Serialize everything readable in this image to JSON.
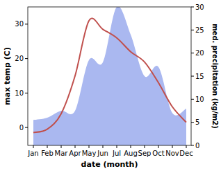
{
  "chart_data": {
    "type": "line",
    "x_label": "date (month)",
    "y_label": "max temp (C)",
    "y2_label": "med. precipitation (kg/m2)",
    "categories": [
      "Jan",
      "Feb",
      "Mar",
      "Apr",
      "May",
      "Jun",
      "Jul",
      "Aug",
      "Sep",
      "Oct",
      "Nov",
      "Dec"
    ],
    "series": [
      {
        "name": "max temp",
        "type": "line",
        "color": "#c0504d",
        "values": [
          -1.5,
          -0.5,
          4,
          15,
          31,
          28.5,
          26,
          22,
          19,
          13,
          6,
          1.5
        ]
      },
      {
        "name": "med. precipitation",
        "type": "area",
        "color": "#aab8f0",
        "axis": "y2",
        "values": [
          5.5,
          6,
          7.5,
          7.5,
          18.5,
          18,
          30,
          24,
          15,
          17,
          7,
          8
        ]
      }
    ],
    "ylim": [
      -5.2,
      35
    ],
    "yticks": [
      0,
      10,
      20,
      30
    ],
    "y2lim": [
      0,
      30
    ],
    "y2ticks": [
      0,
      5,
      10,
      15,
      20,
      25,
      30
    ]
  }
}
